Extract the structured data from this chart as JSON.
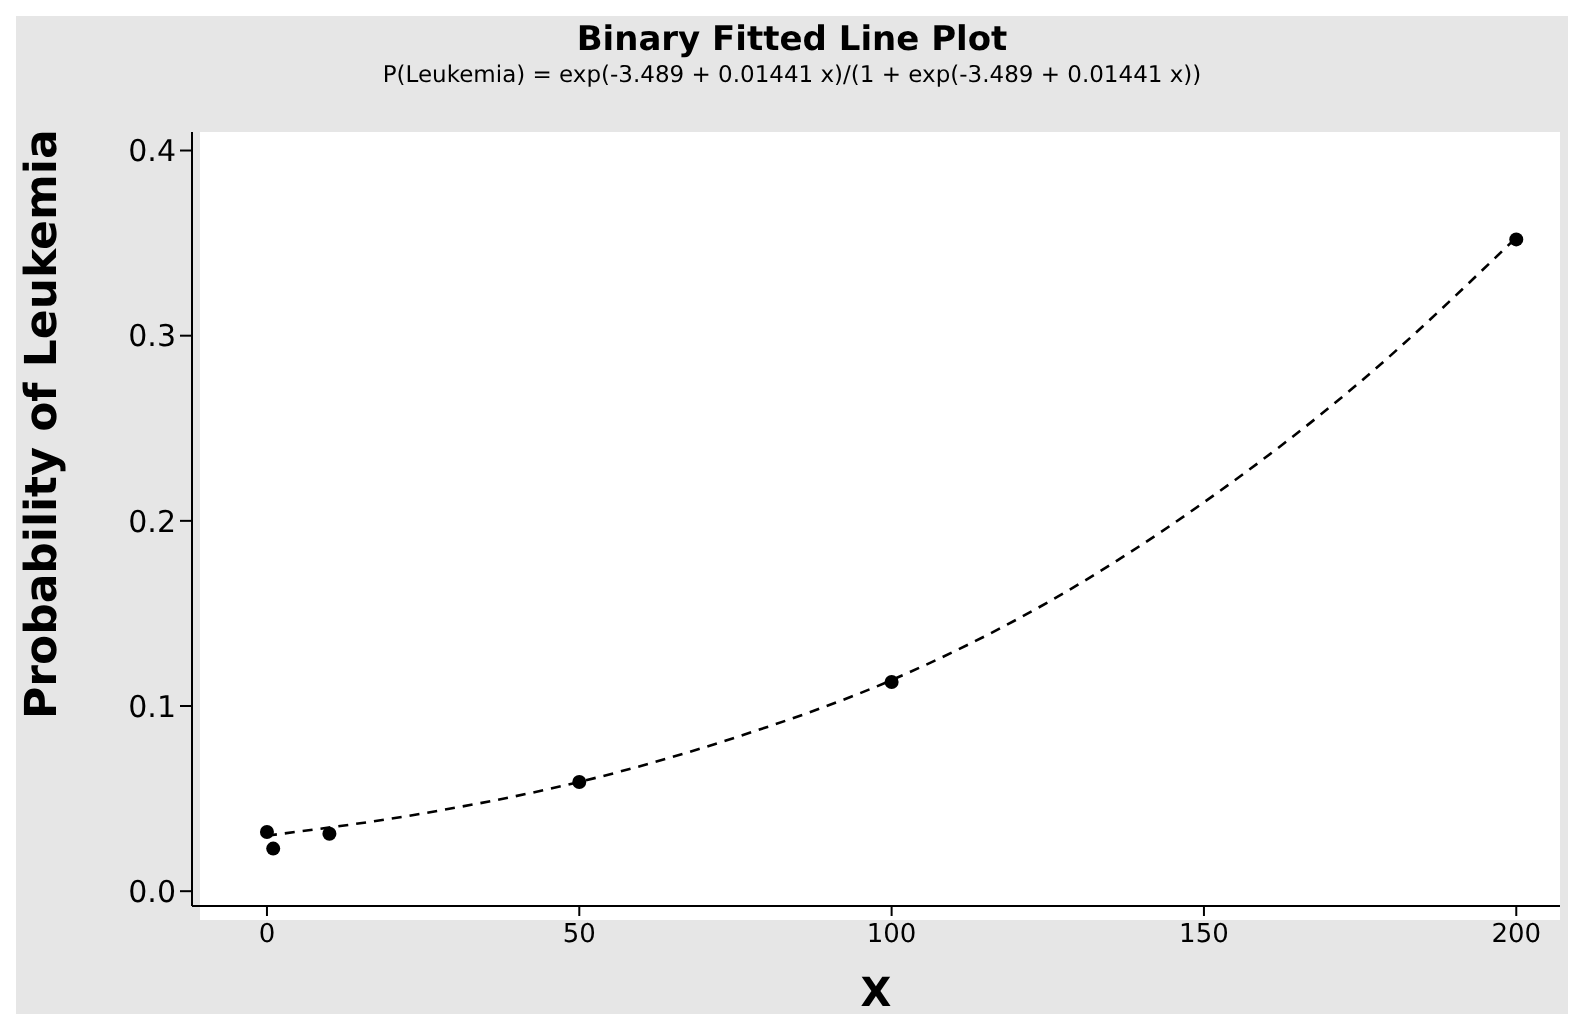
{
  "chart_data": {
    "type": "scatter",
    "title": "Binary Fitted Line Plot",
    "subtitle": "P(Leukemia) = exp(-3.489 + 0.01441 x)/(1 + exp(-3.489 + 0.01441 x))",
    "xlabel": "X",
    "ylabel": "Probability of Leukemia",
    "xlim": [
      -12,
      207
    ],
    "xticks": [
      0,
      50,
      100,
      150,
      200
    ],
    "ylim": [
      -0.008,
      0.41
    ],
    "yticks": [
      {
        "value": 0,
        "label": "0.0"
      },
      0.1,
      0.2,
      0.3,
      0.4
    ],
    "grid": false,
    "legend": false,
    "series": [
      {
        "color": "#000000",
        "marker": "circle",
        "x": [
          0,
          1,
          10,
          50,
          100,
          200
        ],
        "values": [
          0.032,
          0.023,
          0.031,
          0.059,
          0.113,
          0.352
        ]
      },
      {
        "type": "line",
        "color": "#000000",
        "marker": "none",
        "line_style": "dashed",
        "x": [
          0,
          25,
          50,
          75,
          100,
          125,
          150,
          175,
          200
        ],
        "values": [
          0.03,
          0.042,
          0.059,
          0.083,
          0.114,
          0.156,
          0.21,
          0.275,
          0.353
        ]
      }
    ]
  }
}
